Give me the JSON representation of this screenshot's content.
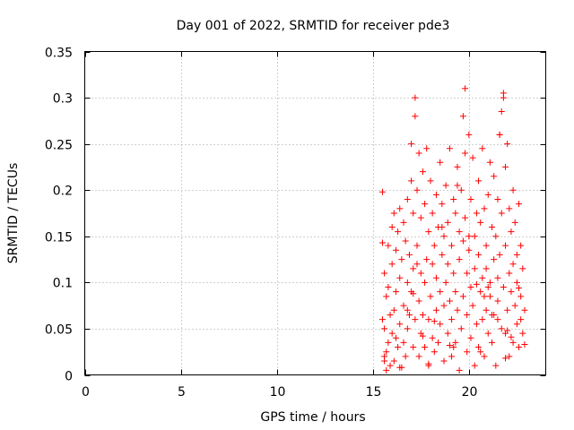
{
  "chart_data": {
    "type": "scatter",
    "title": "Day 001 of 2022, SRMTID for receiver pde3",
    "xlabel": "GPS time / hours",
    "ylabel": "SRMTID / TECUs",
    "xlim": [
      0,
      24
    ],
    "ylim": [
      0,
      0.35
    ],
    "xticks": [
      0,
      5,
      10,
      15,
      20
    ],
    "yticks": [
      0,
      0.05,
      0.1,
      0.15,
      0.2,
      0.25,
      0.3,
      0.35
    ],
    "xtick_labels": [
      "0",
      "5",
      "10",
      "15",
      "20"
    ],
    "ytick_labels": [
      "0",
      "0.05",
      "0.1",
      "0.15",
      "0.2",
      "0.25",
      "0.3",
      "0.35"
    ],
    "grid": true,
    "marker": "plus",
    "color": "#ff0000",
    "series": [
      {
        "x": [
          15.5,
          15.5,
          15.5,
          15.6,
          15.6,
          15.6,
          15.7,
          15.7,
          15.7,
          15.8,
          15.8,
          15.8,
          15.9,
          15.9,
          16.0,
          16.0,
          16.0,
          16.1,
          16.1,
          16.1,
          16.2,
          16.2,
          16.2,
          16.3,
          16.3,
          16.4,
          16.4,
          16.4,
          16.5,
          16.5,
          16.6,
          16.6,
          16.6,
          16.7,
          16.7,
          16.8,
          16.8,
          16.8,
          16.9,
          16.9,
          17.0,
          17.0,
          17.0,
          17.1,
          17.1,
          17.1,
          17.2,
          17.2,
          17.2,
          17.3,
          17.3,
          17.4,
          17.4,
          17.4,
          17.5,
          17.5,
          17.5,
          17.6,
          17.6,
          17.7,
          17.7,
          17.7,
          17.8,
          17.8,
          17.9,
          17.9,
          17.9,
          18.0,
          18.0,
          18.1,
          18.1,
          18.1,
          18.2,
          18.2,
          18.3,
          18.3,
          18.3,
          18.4,
          18.4,
          18.5,
          18.5,
          18.5,
          18.6,
          18.6,
          18.7,
          18.7,
          18.7,
          18.8,
          18.8,
          18.9,
          18.9,
          18.9,
          19.0,
          19.0,
          19.1,
          19.1,
          19.1,
          19.2,
          19.2,
          19.3,
          19.3,
          19.3,
          19.4,
          19.4,
          19.5,
          19.5,
          19.5,
          19.6,
          19.6,
          19.7,
          19.7,
          19.7,
          19.8,
          19.8,
          19.9,
          19.9,
          19.9,
          20.0,
          20.0,
          20.1,
          20.1,
          20.1,
          20.2,
          20.2,
          20.3,
          20.3,
          20.3,
          20.4,
          20.4,
          20.5,
          20.5,
          20.5,
          20.6,
          20.6,
          20.7,
          20.7,
          20.7,
          20.8,
          20.8,
          20.9,
          20.9,
          20.9,
          21.0,
          21.0,
          21.1,
          21.1,
          21.1,
          21.2,
          21.2,
          21.3,
          21.3,
          21.3,
          21.4,
          21.4,
          21.5,
          21.5,
          21.5,
          21.6,
          21.6,
          21.7,
          21.7,
          21.7,
          21.8,
          21.8,
          21.9,
          21.9,
          21.9,
          22.0,
          22.0,
          22.1,
          22.1,
          22.1,
          22.2,
          22.2,
          22.3,
          22.3,
          22.3,
          22.4,
          22.4,
          22.5,
          22.5,
          22.5,
          22.6,
          22.6,
          22.7,
          22.7,
          22.7,
          22.8,
          22.8,
          22.9,
          22.9,
          17.1,
          17.3,
          18.6,
          19.4,
          19.8,
          20.0,
          21.0,
          21.6,
          21.8,
          21.5,
          22.0,
          16.8,
          17.6,
          18.2,
          19.0,
          20.4,
          20.8,
          21.2,
          22.2,
          22.6,
          15.6,
          16.4,
          17.9,
          19.2,
          20.6,
          21.9
        ],
        "y": [
          0.198,
          0.143,
          0.06,
          0.02,
          0.05,
          0.11,
          0.085,
          0.025,
          0.005,
          0.095,
          0.035,
          0.14,
          0.065,
          0.01,
          0.12,
          0.16,
          0.045,
          0.175,
          0.07,
          0.015,
          0.135,
          0.09,
          0.04,
          0.155,
          0.03,
          0.105,
          0.18,
          0.055,
          0.125,
          0.008,
          0.165,
          0.075,
          0.035,
          0.145,
          0.02,
          0.19,
          0.1,
          0.05,
          0.13,
          0.065,
          0.21,
          0.25,
          0.09,
          0.175,
          0.03,
          0.115,
          0.3,
          0.28,
          0.06,
          0.2,
          0.14,
          0.24,
          0.08,
          0.02,
          0.17,
          0.11,
          0.045,
          0.22,
          0.065,
          0.185,
          0.1,
          0.03,
          0.245,
          0.125,
          0.155,
          0.06,
          0.01,
          0.21,
          0.085,
          0.175,
          0.04,
          0.12,
          0.14,
          0.025,
          0.195,
          0.07,
          0.105,
          0.16,
          0.035,
          0.23,
          0.09,
          0.055,
          0.185,
          0.13,
          0.15,
          0.015,
          0.075,
          0.205,
          0.1,
          0.165,
          0.045,
          0.12,
          0.245,
          0.08,
          0.14,
          0.02,
          0.06,
          0.19,
          0.11,
          0.175,
          0.035,
          0.09,
          0.225,
          0.07,
          0.155,
          0.005,
          0.125,
          0.2,
          0.05,
          0.28,
          0.145,
          0.085,
          0.31,
          0.17,
          0.11,
          0.025,
          0.065,
          0.26,
          0.135,
          0.19,
          0.04,
          0.095,
          0.235,
          0.075,
          0.15,
          0.01,
          0.115,
          0.175,
          0.055,
          0.21,
          0.13,
          0.03,
          0.165,
          0.09,
          0.245,
          0.105,
          0.06,
          0.18,
          0.02,
          0.14,
          0.07,
          0.115,
          0.195,
          0.045,
          0.1,
          0.23,
          0.085,
          0.16,
          0.035,
          0.125,
          0.215,
          0.065,
          0.15,
          0.01,
          0.105,
          0.19,
          0.08,
          0.26,
          0.13,
          0.05,
          0.285,
          0.175,
          0.095,
          0.305,
          0.045,
          0.225,
          0.14,
          0.25,
          0.07,
          0.11,
          0.18,
          0.02,
          0.155,
          0.09,
          0.035,
          0.2,
          0.12,
          0.075,
          0.165,
          0.055,
          0.13,
          0.1,
          0.03,
          0.185,
          0.06,
          0.14,
          0.085,
          0.045,
          0.115,
          0.07,
          0.033,
          0.088,
          0.12,
          0.16,
          0.205,
          0.24,
          0.15,
          0.095,
          0.26,
          0.3,
          0.06,
          0.048,
          0.07,
          0.042,
          0.058,
          0.032,
          0.098,
          0.085,
          0.065,
          0.041,
          0.094,
          0.015,
          0.008,
          0.012,
          0.03,
          0.025,
          0.018
        ]
      }
    ]
  }
}
